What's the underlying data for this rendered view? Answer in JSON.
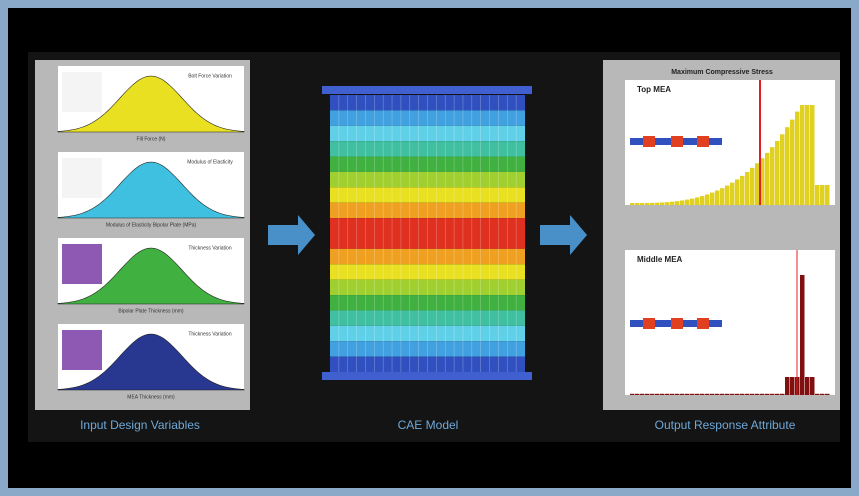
{
  "left_panel": {
    "caption": "Input Design Variables",
    "plots": [
      {
        "x_label": "Fill Force (N)",
        "note": "Bolt Force Variation"
      },
      {
        "x_label": "Modulus of Elasticity Bipolar Plate (MPa)",
        "note": "Modulus of Elasticity"
      },
      {
        "x_label": "Bipolar Plate Thickness (mm)",
        "note": "Thickness Variation"
      },
      {
        "x_label": "MEA Thickness (mm)",
        "note": "Thickness Variation"
      }
    ]
  },
  "center_panel": {
    "caption": "CAE Model"
  },
  "right_panel": {
    "caption": "Output Response Attribute",
    "title": "Maximum Compressive Stress",
    "plots": [
      {
        "title": "Top MEA"
      },
      {
        "title": "Middle MEA"
      }
    ]
  }
}
